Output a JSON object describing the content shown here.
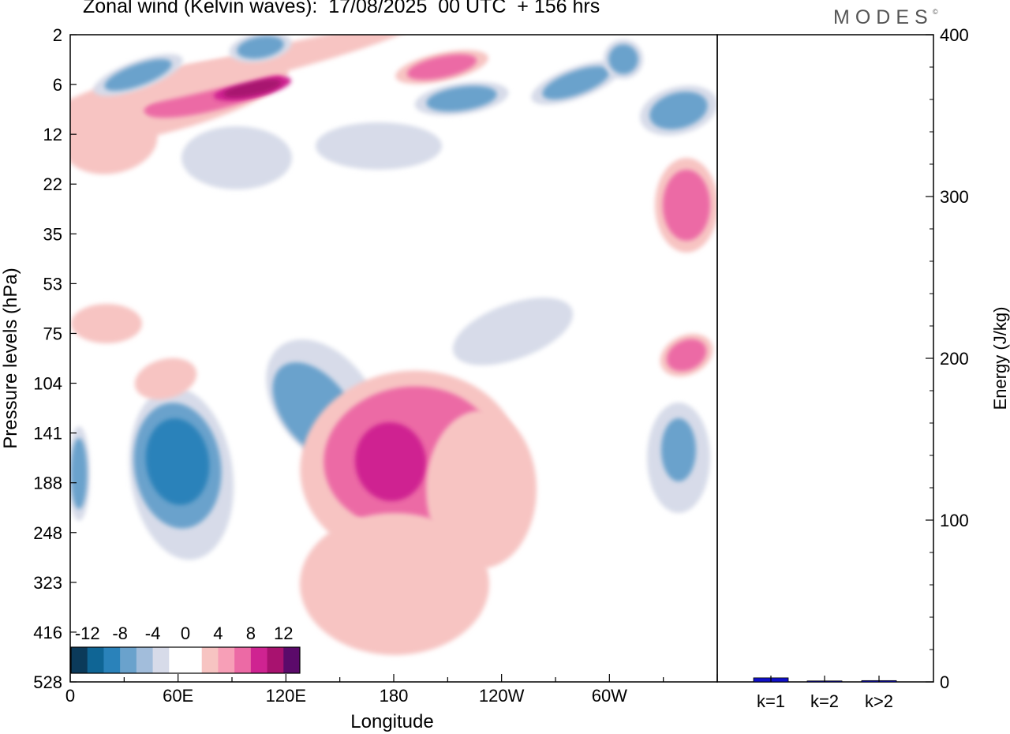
{
  "title": "Zonal wind (Kelvin waves):  17/08/2025  00 UTC  + 156 hrs",
  "brand": {
    "name": "MODES",
    "mark": "©"
  },
  "chart_data": [
    {
      "type": "heatmap",
      "title": "Zonal wind (Kelvin waves)",
      "xlabel": "Longitude",
      "ylabel": "Pressure levels (hPa)",
      "x_ticks": [
        "0",
        "60E",
        "120E",
        "180",
        "120W",
        "60W"
      ],
      "y_ticks": [
        "2",
        "6",
        "12",
        "22",
        "35",
        "53",
        "75",
        "104",
        "141",
        "188",
        "248",
        "323",
        "416",
        "528"
      ],
      "colorbar": {
        "labels": [
          "-12",
          "-8",
          "-4",
          "0",
          "4",
          "8",
          "12"
        ],
        "colors": [
          "#0b3a5a",
          "#0f6595",
          "#2a82ba",
          "#6aa2cc",
          "#a2bddb",
          "#d7dbe9",
          "#ffffff",
          "#ffffff",
          "#f7c4c2",
          "#f79fb7",
          "#ec6aa5",
          "#cf2391",
          "#a8126f",
          "#5b0a6a"
        ]
      },
      "features": [
        {
          "sign": "positive",
          "level": "16",
          "location": "60E-130E, 6-12 hPa"
        },
        {
          "sign": "positive",
          "level": "12",
          "location": "175E-170W, 140-230 hPa"
        },
        {
          "sign": "negative",
          "level": "-12",
          "location": "50E-70E, 140-220 hPa"
        },
        {
          "sign": "negative",
          "level": "-8",
          "location": "0-10E, 160-230 hPa"
        },
        {
          "sign": "negative",
          "level": "-8",
          "location": "125E-155E, 95-150 hPa"
        },
        {
          "sign": "negative",
          "level": "-8",
          "location": "40W-20W, 130-200 hPa"
        },
        {
          "sign": "positive",
          "level": "8",
          "location": "40W-20W, 80-100 hPa"
        }
      ]
    },
    {
      "type": "bar",
      "ylabel": "Energy (J/kg)",
      "categories": [
        "k=1",
        "k=2",
        "k>2"
      ],
      "values": [
        2.5,
        0.6,
        0.8
      ],
      "ylim": [
        0,
        400
      ],
      "y_ticks": [
        "0",
        "100",
        "200",
        "300",
        "400"
      ],
      "bar_color": "#1010c8"
    }
  ]
}
